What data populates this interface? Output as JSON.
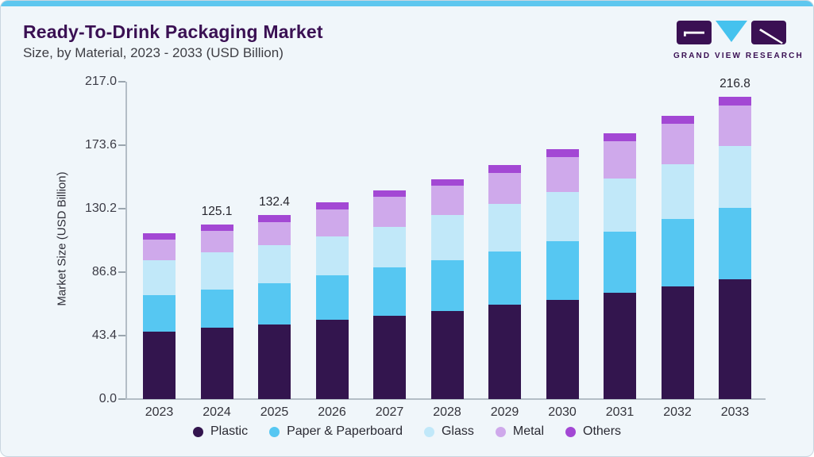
{
  "header": {
    "title": "Ready-To-Drink Packaging Market",
    "subtitle": "Size, by Material, 2023 - 2033 (USD Billion)"
  },
  "logo": {
    "text": "GRAND VIEW RESEARCH"
  },
  "colors": {
    "accent_bar": "#5EC7EF",
    "card_background": "#F0F6FA",
    "title_text": "#3A1053",
    "axis_line": "#B3BDC6",
    "logo_purple": "#3A1053",
    "logo_cyan": "#45C2EE"
  },
  "chart_data": {
    "type": "bar",
    "stacked": true,
    "title": "Ready-To-Drink Packaging Market Size, by Material, 2023 - 2033 (USD Billion)",
    "xlabel": "",
    "ylabel": "Market Size (USD Billion)",
    "categories": [
      "2023",
      "2024",
      "2025",
      "2026",
      "2027",
      "2028",
      "2029",
      "2030",
      "2031",
      "2032",
      "2033"
    ],
    "series": [
      {
        "name": "Plastic",
        "color": "#33154E",
        "values": [
          48.6,
          51.4,
          53.8,
          56.9,
          59.6,
          63.3,
          67.7,
          71.0,
          76.3,
          81.0,
          86.1
        ]
      },
      {
        "name": "Paper & Paperboard",
        "color": "#56C7F2",
        "values": [
          26.0,
          27.4,
          29.4,
          32.0,
          34.7,
          36.1,
          38.0,
          42.3,
          44.0,
          48.4,
          50.9
        ]
      },
      {
        "name": "Glass",
        "color": "#C1E8F9",
        "values": [
          25.0,
          26.3,
          27.5,
          28.0,
          29.1,
          32.5,
          34.2,
          35.1,
          38.0,
          39.0,
          44.6
        ]
      },
      {
        "name": "Metal",
        "color": "#CFA9EB",
        "values": [
          14.8,
          15.6,
          16.5,
          19.4,
          21.6,
          21.3,
          22.2,
          25.6,
          26.6,
          29.0,
          28.9
        ]
      },
      {
        "name": "Others",
        "color": "#A348D4",
        "values": [
          4.6,
          4.4,
          5.2,
          4.9,
          4.7,
          4.7,
          6.0,
          5.7,
          5.7,
          6.1,
          6.3
        ]
      }
    ],
    "totals": [
      119.0,
      125.1,
      132.4,
      141.2,
      149.7,
      157.9,
      168.1,
      179.7,
      190.6,
      203.5,
      216.8
    ],
    "bar_labels": {
      "2024": "125.1",
      "2025": "132.4",
      "2033": "216.8"
    },
    "yticks": [
      "0.0",
      "43.4",
      "86.8",
      "130.2",
      "173.6",
      "217.0"
    ],
    "ylim": [
      0,
      217.0
    ],
    "grid": false,
    "legend_position": "bottom",
    "legend_entries": [
      "Plastic",
      "Paper & Paperboard",
      "Glass",
      "Metal",
      "Others"
    ]
  }
}
